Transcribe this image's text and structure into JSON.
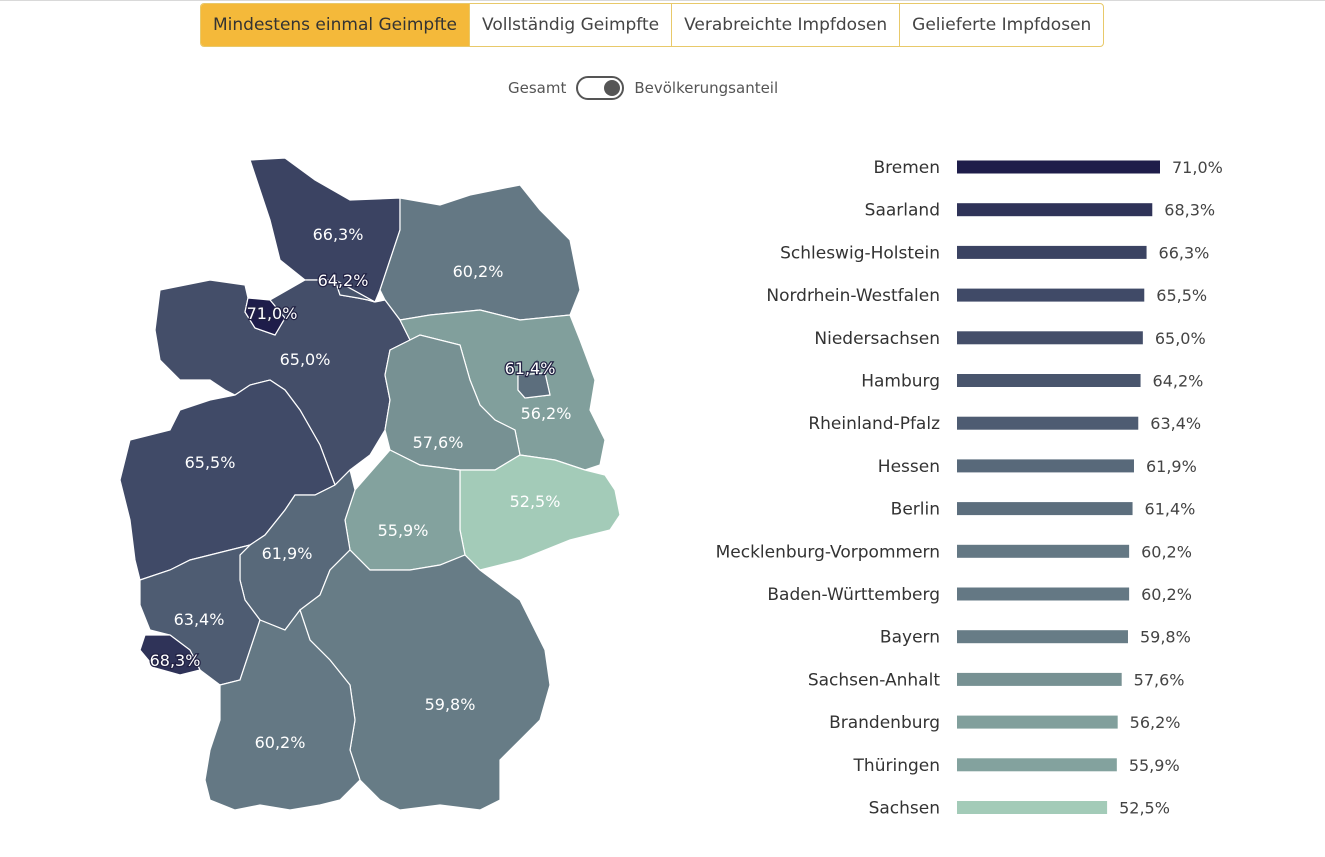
{
  "tabs": [
    {
      "label": "Mindestens einmal Geimpfte",
      "active": true
    },
    {
      "label": "Vollständig Geimpfte",
      "active": false
    },
    {
      "label": "Verabreichte Impfdosen",
      "active": false
    },
    {
      "label": "Gelieferte Impfdosen",
      "active": false
    }
  ],
  "toggle": {
    "left_label": "Gesamt",
    "right_label": "Bevölkerungsanteil",
    "state": "right"
  },
  "chart_data": [
    {
      "type": "choropleth",
      "unit": "%",
      "regions": [
        {
          "name": "Schleswig-Holstein",
          "label": "66,3%",
          "value": 66.3
        },
        {
          "name": "Hamburg",
          "label": "64,2%",
          "value": 64.2
        },
        {
          "name": "Mecklenburg-Vorpommern",
          "label": "60,2%",
          "value": 60.2
        },
        {
          "name": "Bremen",
          "label": "71,0%",
          "value": 71.0
        },
        {
          "name": "Niedersachsen",
          "label": "65,0%",
          "value": 65.0
        },
        {
          "name": "Berlin",
          "label": "61,4%",
          "value": 61.4
        },
        {
          "name": "Brandenburg",
          "label": "56,2%",
          "value": 56.2
        },
        {
          "name": "Sachsen-Anhalt",
          "label": "57,6%",
          "value": 57.6
        },
        {
          "name": "Nordrhein-Westfalen",
          "label": "65,5%",
          "value": 65.5
        },
        {
          "name": "Sachsen",
          "label": "52,5%",
          "value": 52.5
        },
        {
          "name": "Thüringen",
          "label": "55,9%",
          "value": 55.9
        },
        {
          "name": "Hessen",
          "label": "61,9%",
          "value": 61.9
        },
        {
          "name": "Rheinland-Pfalz",
          "label": "63,4%",
          "value": 63.4
        },
        {
          "name": "Saarland",
          "label": "68,3%",
          "value": 68.3
        },
        {
          "name": "Bayern",
          "label": "59,8%",
          "value": 59.8
        },
        {
          "name": "Baden-Württemberg",
          "label": "60,2%",
          "value": 60.2
        }
      ]
    },
    {
      "type": "bar",
      "orientation": "horizontal",
      "categories": [
        "Bremen",
        "Saarland",
        "Schleswig-Holstein",
        "Nordrhein-Westfalen",
        "Niedersachsen",
        "Hamburg",
        "Rheinland-Pfalz",
        "Hessen",
        "Berlin",
        "Mecklenburg-Vorpommern",
        "Baden-Württemberg",
        "Bayern",
        "Sachsen-Anhalt",
        "Brandenburg",
        "Thüringen",
        "Sachsen"
      ],
      "values": [
        71.0,
        68.3,
        66.3,
        65.5,
        65.0,
        64.2,
        63.4,
        61.9,
        61.4,
        60.2,
        60.2,
        59.8,
        57.6,
        56.2,
        55.9,
        52.5
      ],
      "value_labels": [
        "71,0%",
        "68,3%",
        "66,3%",
        "65,5%",
        "65,0%",
        "64,2%",
        "63,4%",
        "61,9%",
        "61,4%",
        "60,2%",
        "60,2%",
        "59,8%",
        "57,6%",
        "56,2%",
        "55,9%",
        "52,5%"
      ],
      "xlim": [
        0,
        71.0
      ],
      "color_scale": [
        "#a3cbb8",
        "#1e1d4a"
      ]
    }
  ]
}
